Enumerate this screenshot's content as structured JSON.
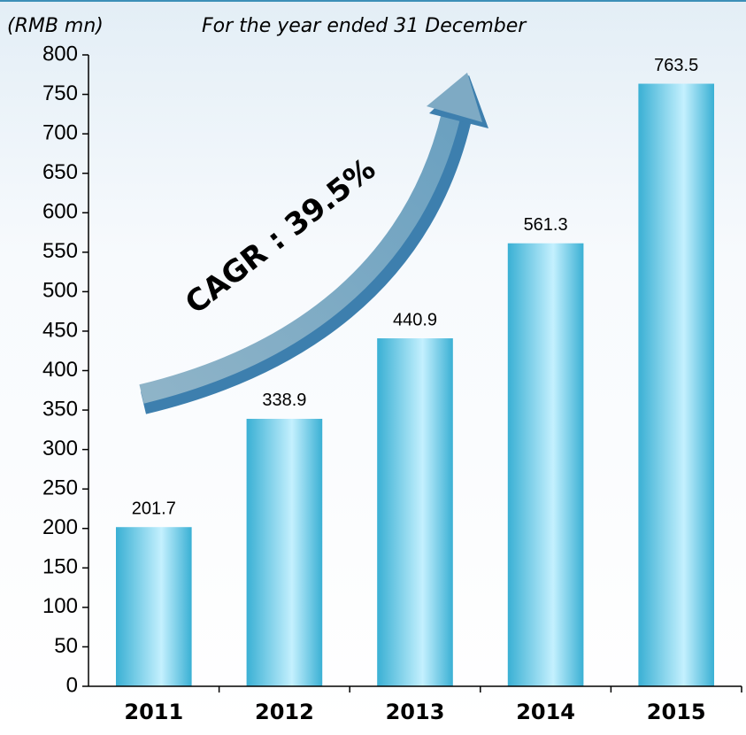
{
  "chart_data": {
    "type": "bar",
    "title": "For the year ended 31 December",
    "y_axis_label": "(RMB mn)",
    "annotation": "CAGR : 39.5%",
    "categories": [
      "2011",
      "2012",
      "2013",
      "2014",
      "2015"
    ],
    "values": [
      201.7,
      338.9,
      440.9,
      561.3,
      763.5
    ],
    "color": "#3ab0d4",
    "ylim": [
      0,
      800
    ],
    "yticks": [
      0,
      50,
      100,
      150,
      200,
      250,
      300,
      350,
      400,
      450,
      500,
      550,
      600,
      650,
      700,
      750,
      800
    ],
    "grid": false
  }
}
